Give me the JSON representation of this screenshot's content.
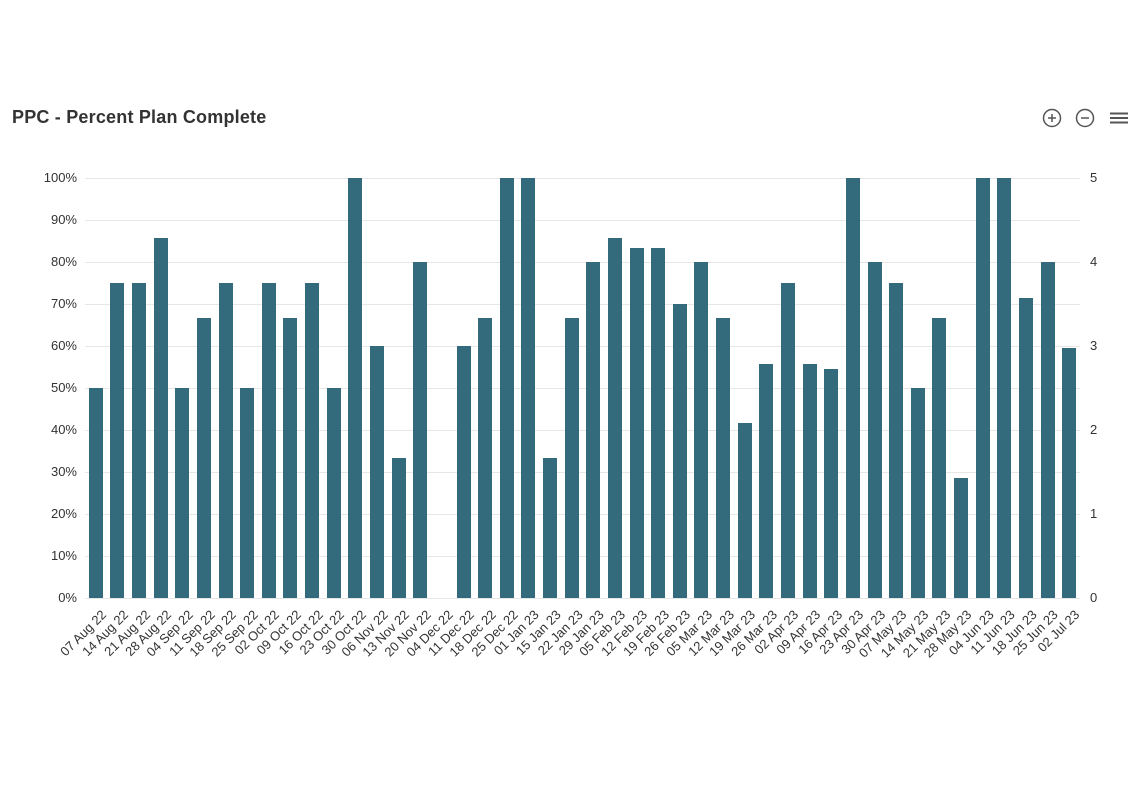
{
  "header": {
    "title": "PPC - Percent Plan Complete"
  },
  "toolbar": {
    "icons": [
      {
        "name": "zoom-in-icon",
        "glyph": "circle-plus"
      },
      {
        "name": "zoom-out-icon",
        "glyph": "circle-minus"
      },
      {
        "name": "hamburger-menu-icon",
        "glyph": "three-lines"
      }
    ]
  },
  "colors": {
    "bar": "#336b7c",
    "grid": "#e6e6e6",
    "title_text": "#333333",
    "axis_text": "#333333",
    "icon": "#555555",
    "background": "#ffffff"
  },
  "chart_data": {
    "type": "bar",
    "title": "PPC - Percent Plan Complete",
    "xlabel": "",
    "ylabel": "",
    "grid": true,
    "legend": false,
    "bar_color": "#336b7c",
    "categories": [
      "07 Aug 22",
      "14 Aug 22",
      "21 Aug 22",
      "28 Aug 22",
      "04 Sep 22",
      "11 Sep 22",
      "18 Sep 22",
      "25 Sep 22",
      "02 Oct 22",
      "09 Oct 22",
      "16 Oct 22",
      "23 Oct 22",
      "30 Oct 22",
      "06 Nov 22",
      "13 Nov 22",
      "20 Nov 22",
      "04 Dec 22",
      "11 Dec 22",
      "18 Dec 22",
      "25 Dec 22",
      "01 Jan 23",
      "15 Jan 23",
      "22 Jan 23",
      "29 Jan 23",
      "05 Feb 23",
      "12 Feb 23",
      "19 Feb 23",
      "26 Feb 23",
      "05 Mar 23",
      "12 Mar 23",
      "19 Mar 23",
      "26 Mar 23",
      "02 Apr 23",
      "09 Apr 23",
      "16 Apr 23",
      "23 Apr 23",
      "30 Apr 23",
      "07 May 23",
      "14 May 23",
      "21 May 23",
      "28 May 23",
      "04 Jun 23",
      "11 Jun 23",
      "18 Jun 23",
      "25 Jun 23",
      "02 Jul 23"
    ],
    "values": [
      50,
      75,
      75,
      85.7,
      50,
      66.7,
      75,
      50,
      75,
      66.7,
      75,
      50,
      100,
      60,
      33.3,
      80,
      0,
      60,
      66.7,
      100,
      100,
      33.3,
      66.7,
      80,
      85.7,
      83.3,
      83.3,
      70,
      80,
      66.7,
      41.7,
      55.6,
      75,
      55.6,
      54.5,
      100,
      80,
      75,
      50,
      66.7,
      28.6,
      100,
      100,
      71.4,
      80,
      59.5
    ],
    "y_axis_left": {
      "min": 0,
      "max": 100,
      "tick_interval": 10,
      "format": "percent",
      "ticks": [
        "0%",
        "10%",
        "20%",
        "30%",
        "40%",
        "50%",
        "60%",
        "70%",
        "80%",
        "90%",
        "100%"
      ]
    },
    "y_axis_right": {
      "min": 0,
      "max": 5,
      "tick_interval": 1,
      "ticks": [
        "0",
        "1",
        "2",
        "3",
        "4",
        "5"
      ]
    },
    "x_axis": {
      "label_rotation": -45
    }
  }
}
